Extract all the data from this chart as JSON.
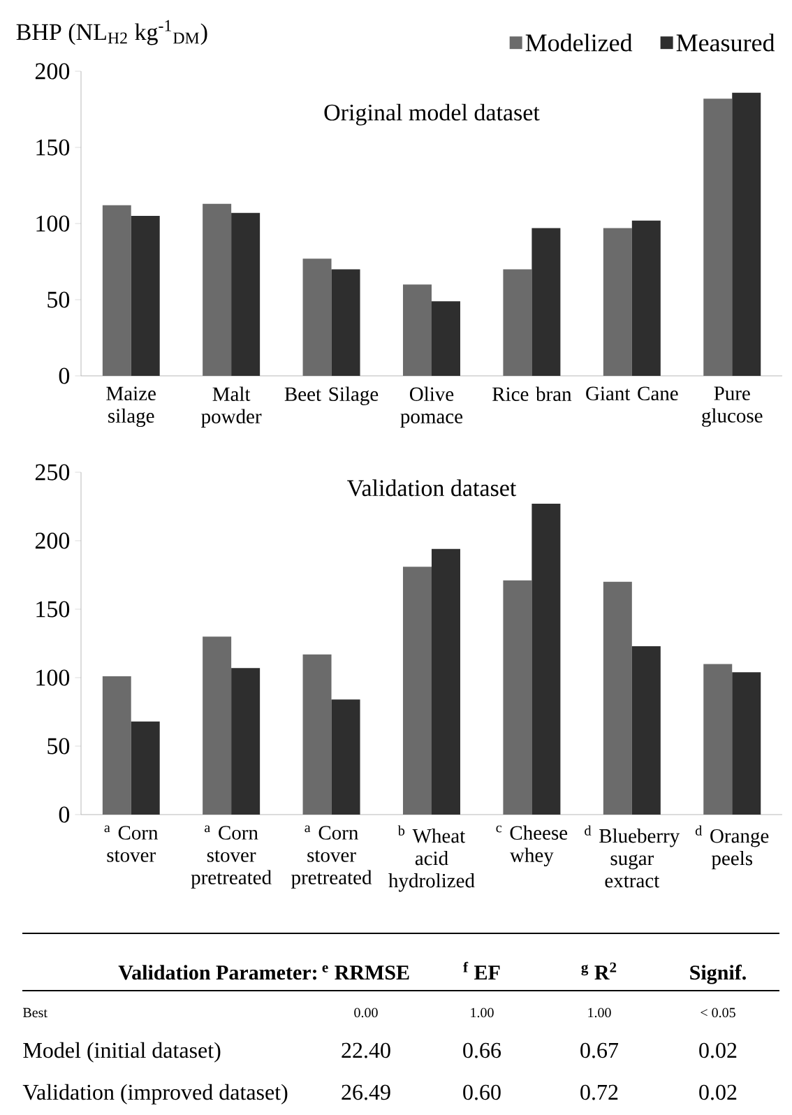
{
  "chart_data": [
    {
      "type": "bar",
      "title": "Original model dataset",
      "ylabel": "BHP (NL$_{H2}$ kg$^{-1}$$_{DM}$)",
      "categories": [
        "Maize silage",
        "Malt powder",
        "Beet Silage",
        "Olive pomace",
        "Rice bran",
        "Giant Cane",
        "Pure glucose"
      ],
      "series": [
        {
          "name": "Modelized",
          "color": "#6b6b6b",
          "values": [
            112,
            113,
            77,
            60,
            70,
            97,
            182
          ]
        },
        {
          "name": "Measured",
          "color": "#2e2e2e",
          "values": [
            105,
            107,
            70,
            49,
            97,
            102,
            186
          ]
        }
      ],
      "ylim": [
        0,
        200
      ],
      "yticks": [
        0,
        50,
        100,
        150,
        200
      ],
      "legend": "top right"
    },
    {
      "type": "bar",
      "title": "Validation dataset",
      "categories": [
        "$^{a}$ Corn stover",
        "$^{a}$ Corn stover pretreated",
        "$^{a}$ Corn stover pretreated",
        "$^{b}$ Wheat acid hydrolized",
        "$^{c}$ Cheese whey",
        "$^{d}$ Blueberry sugar extract",
        "$^{d}$ Orange peels"
      ],
      "series": [
        {
          "color": "#6b6b6b",
          "values": [
            101,
            130,
            117,
            181,
            171,
            170,
            110
          ]
        },
        {
          "color": "#2e2e2e",
          "values": [
            68,
            107,
            84,
            194,
            227,
            123,
            104
          ]
        }
      ],
      "ylim": [
        0,
        250
      ],
      "yticks": [
        0,
        50,
        100,
        150,
        200,
        250
      ]
    },
    {
      "type": "other",
      "annotations": [
        "Validation Parameter:",
        "$^{e}$ RRMSE",
        "$^{f}$ EF",
        "$^{g}$ R$^{2}$",
        "Signif.",
        "Best",
        "0.00",
        "1.00",
        "1.00",
        "< 0.05",
        "Model (initial dataset)",
        "22.40",
        "0.66",
        "0.67",
        "0.02",
        "Validation (improved dataset)",
        "26.49",
        "0.60",
        "0.72",
        "0.02"
      ]
    }
  ]
}
